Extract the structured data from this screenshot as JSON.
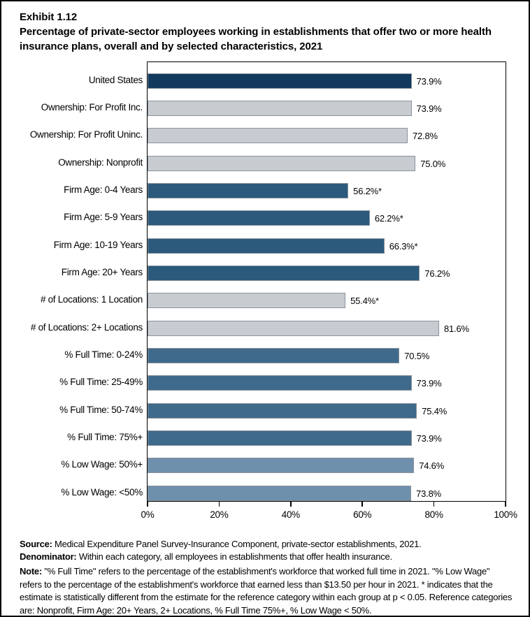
{
  "window": {
    "background_color": "#ffffff",
    "border_color": "#000000"
  },
  "header": {
    "exhibit": "Exhibit 1.12",
    "title": "Percentage of private-sector employees working in establishments that offer two or more health insurance plans, overall and by selected characteristics, 2021"
  },
  "chart_data": {
    "type": "bar",
    "orientation": "horizontal",
    "title": "Percentage of private-sector employees working in establishments that offer two or more health insurance plans, overall and by selected characteristics, 2021",
    "xlabel": "",
    "ylabel": "",
    "xlim": [
      0,
      100
    ],
    "grid": false,
    "x_tick_labels": [
      "0%",
      "20%",
      "40%",
      "60%",
      "80%",
      "100%"
    ],
    "x_tick_values": [
      0,
      20,
      40,
      60,
      80,
      100
    ],
    "bar_border_color": "#8a939c",
    "axis_color": "#000000",
    "palette": {
      "navy": "#12395e",
      "gray": "#c8ccd1",
      "firm_age_blue": "#2b5a7c",
      "full_time_blue": "#3f6a8c",
      "low_wage_blue": "#6f90ac"
    },
    "categories": [
      "United States",
      "Ownership: For Profit Inc.",
      "Ownership: For Profit Uninc.",
      "Ownership: Nonprofit",
      "Firm Age: 0-4 Years",
      "Firm Age: 5-9 Years",
      "Firm Age: 10-19 Years",
      "Firm Age: 20+ Years",
      "# of Locations: 1 Location",
      "# of Locations: 2+ Locations",
      "% Full Time: 0-24%",
      "% Full Time: 25-49%",
      "% Full Time: 50-74%",
      "% Full Time: 75%+",
      "% Low Wage: 50%+",
      "% Low Wage: <50%"
    ],
    "values": [
      73.9,
      73.9,
      72.8,
      75.0,
      56.2,
      62.2,
      66.3,
      76.2,
      55.4,
      81.6,
      70.5,
      73.9,
      75.4,
      73.9,
      74.6,
      73.8
    ],
    "bars": [
      {
        "label": "United States",
        "value": 73.9,
        "display": "73.9%",
        "color": "#12395e"
      },
      {
        "label": "Ownership: For Profit Inc.",
        "value": 73.9,
        "display": "73.9%",
        "color": "#c8ccd1"
      },
      {
        "label": "Ownership: For Profit Uninc.",
        "value": 72.8,
        "display": "72.8%",
        "color": "#c8ccd1"
      },
      {
        "label": "Ownership: Nonprofit",
        "value": 75.0,
        "display": "75.0%",
        "color": "#c8ccd1"
      },
      {
        "label": "Firm Age: 0-4 Years",
        "value": 56.2,
        "display": "56.2%*",
        "color": "#2b5a7c"
      },
      {
        "label": "Firm Age: 5-9 Years",
        "value": 62.2,
        "display": "62.2%*",
        "color": "#2b5a7c"
      },
      {
        "label": "Firm Age: 10-19 Years",
        "value": 66.3,
        "display": "66.3%*",
        "color": "#2b5a7c"
      },
      {
        "label": "Firm Age: 20+ Years",
        "value": 76.2,
        "display": "76.2%",
        "color": "#2b5a7c"
      },
      {
        "label": "# of Locations: 1 Location",
        "value": 55.4,
        "display": "55.4%*",
        "color": "#c8ccd1"
      },
      {
        "label": "# of Locations: 2+ Locations",
        "value": 81.6,
        "display": "81.6%",
        "color": "#c8ccd1"
      },
      {
        "label": "% Full Time: 0-24%",
        "value": 70.5,
        "display": "70.5%",
        "color": "#3f6a8c"
      },
      {
        "label": "% Full Time: 25-49%",
        "value": 73.9,
        "display": "73.9%",
        "color": "#3f6a8c"
      },
      {
        "label": "% Full Time: 50-74%",
        "value": 75.4,
        "display": "75.4%",
        "color": "#3f6a8c"
      },
      {
        "label": "% Full Time: 75%+",
        "value": 73.9,
        "display": "73.9%",
        "color": "#3f6a8c"
      },
      {
        "label": "% Low Wage: 50%+",
        "value": 74.6,
        "display": "74.6%",
        "color": "#6f90ac"
      },
      {
        "label": "% Low Wage: <50%",
        "value": 73.8,
        "display": "73.8%",
        "color": "#6f90ac"
      }
    ]
  },
  "footer": {
    "source_label": "Source:",
    "source_text": " Medical Expenditure Panel Survey-Insurance Component, private-sector establishments, 2021.",
    "denominator_label": "Denominator:",
    "denominator_text": " Within each category, all employees in establishments that offer health insurance.",
    "note_label": "Note:",
    "note_text": " \"% Full Time\" refers to the percentage of the establishment's workforce that worked full time in 2021. \"% Low Wage\" refers to the percentage of the establishment's workforce that earned less than $13.50 per hour in 2021. * indicates that the estimate is statistically different from the estimate for the reference category within each group at p < 0.05.  Reference categories are: Nonprofit, Firm Age: 20+ Years, 2+ Locations, % Full Time 75%+, % Low Wage < 50%."
  }
}
